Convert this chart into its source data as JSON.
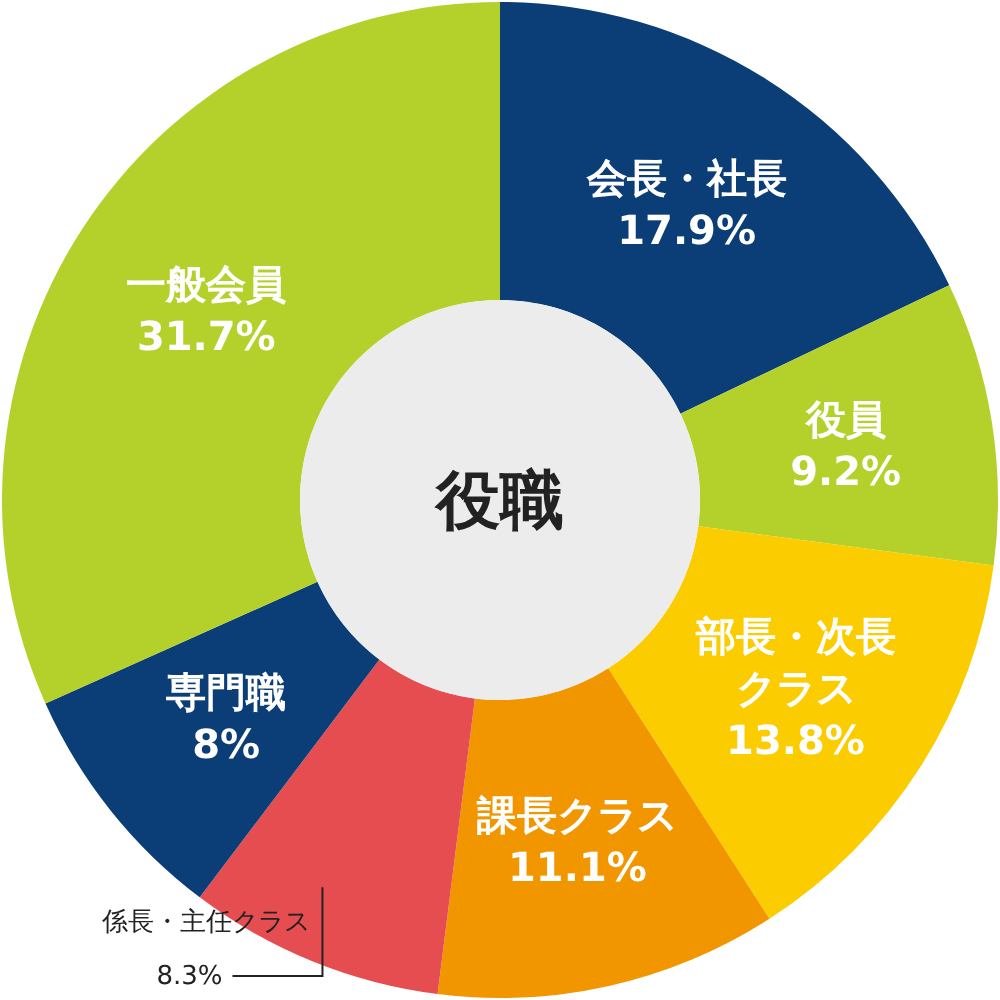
{
  "chart_data": {
    "type": "donut",
    "title": "役職",
    "categories": [
      "会長・社長",
      "役員",
      "部長・次長クラス",
      "課長クラス",
      "係長・主任クラス",
      "専門職",
      "一般会員"
    ],
    "values": [
      17.9,
      9.2,
      13.8,
      11.1,
      8.3,
      8,
      31.7
    ],
    "value_labels": [
      "17.9%",
      "9.2%",
      "13.8%",
      "11.1%",
      "8.3%",
      "8%",
      "31.7%"
    ],
    "colors": [
      "#0b3d77",
      "#b3d12a",
      "#fbcd00",
      "#f29600",
      "#e64d50",
      "#0b3d77",
      "#b3d12a"
    ]
  }
}
